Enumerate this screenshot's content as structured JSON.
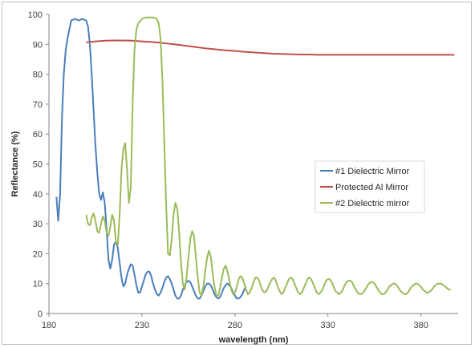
{
  "chart_data": {
    "type": "line",
    "xlabel": "wavelength (nm)",
    "ylabel": "Reflectance (%)",
    "xlim": [
      180,
      400
    ],
    "ylim": [
      0,
      100
    ],
    "x_ticks": [
      180,
      230,
      280,
      330,
      380
    ],
    "y_ticks": [
      0,
      10,
      20,
      30,
      40,
      50,
      60,
      70,
      80,
      90,
      100
    ],
    "grid": false,
    "legend_position": "right",
    "series": [
      {
        "name": "#1 Dielectric Mirror",
        "color": "#4a7ebb",
        "points": [
          [
            184,
            39
          ],
          [
            185,
            31
          ],
          [
            186,
            40
          ],
          [
            187,
            65
          ],
          [
            188,
            80
          ],
          [
            189,
            88
          ],
          [
            190,
            92
          ],
          [
            191,
            95
          ],
          [
            192,
            98
          ],
          [
            194,
            98.5
          ],
          [
            196,
            98
          ],
          [
            198,
            98.5
          ],
          [
            200,
            98
          ],
          [
            201,
            96
          ],
          [
            202,
            90
          ],
          [
            203,
            80
          ],
          [
            204,
            68
          ],
          [
            205,
            56
          ],
          [
            206,
            47
          ],
          [
            207,
            40
          ],
          [
            208,
            38
          ],
          [
            209,
            40.5
          ],
          [
            210,
            37
          ],
          [
            211,
            28
          ],
          [
            212,
            18
          ],
          [
            213,
            15
          ],
          [
            214,
            18
          ],
          [
            215,
            23
          ],
          [
            216,
            24
          ],
          [
            217,
            22
          ],
          [
            218,
            17
          ],
          [
            219,
            12
          ],
          [
            220,
            9
          ],
          [
            221,
            10
          ],
          [
            222,
            13
          ],
          [
            223,
            15
          ],
          [
            224,
            16.5
          ],
          [
            225,
            16
          ],
          [
            226,
            13
          ],
          [
            227,
            9.5
          ],
          [
            228,
            7
          ],
          [
            229,
            7
          ],
          [
            230,
            9
          ],
          [
            231,
            11
          ],
          [
            232,
            13
          ],
          [
            233,
            14
          ],
          [
            234,
            14
          ],
          [
            235,
            12.5
          ],
          [
            236,
            10
          ],
          [
            237,
            8
          ],
          [
            238,
            6.5
          ],
          [
            239,
            6
          ],
          [
            240,
            7
          ],
          [
            241,
            8.5
          ],
          [
            242,
            10.5
          ],
          [
            243,
            12
          ],
          [
            244,
            12.5
          ],
          [
            245,
            11.5
          ],
          [
            246,
            10
          ],
          [
            247,
            8
          ],
          [
            248,
            6
          ],
          [
            249,
            5
          ],
          [
            250,
            5
          ],
          [
            251,
            6
          ],
          [
            252,
            8
          ],
          [
            253,
            9.5
          ],
          [
            254,
            10.5
          ],
          [
            255,
            11
          ],
          [
            256,
            10.5
          ],
          [
            257,
            9
          ],
          [
            258,
            7.5
          ],
          [
            259,
            6
          ],
          [
            260,
            5
          ],
          [
            261,
            5
          ],
          [
            262,
            6
          ],
          [
            263,
            7.5
          ],
          [
            264,
            9
          ],
          [
            265,
            10
          ],
          [
            266,
            10
          ],
          [
            267,
            9.5
          ],
          [
            268,
            8
          ],
          [
            269,
            6.5
          ],
          [
            270,
            5.5
          ],
          [
            271,
            5
          ],
          [
            272,
            5.5
          ],
          [
            273,
            7
          ],
          [
            274,
            8.5
          ],
          [
            275,
            9.5
          ],
          [
            276,
            10
          ],
          [
            277,
            9.5
          ],
          [
            278,
            8.5
          ],
          [
            279,
            7
          ],
          [
            280,
            6
          ],
          [
            281,
            5
          ],
          [
            282,
            5
          ],
          [
            283,
            5.5
          ],
          [
            284,
            6.5
          ],
          [
            285,
            8
          ],
          [
            286,
            9
          ]
        ]
      },
      {
        "name": "Protected Al Mirror",
        "color": "#c0504d",
        "points": [
          [
            200,
            90.7
          ],
          [
            205,
            91
          ],
          [
            210,
            91.2
          ],
          [
            215,
            91.3
          ],
          [
            220,
            91.3
          ],
          [
            225,
            91.2
          ],
          [
            230,
            91
          ],
          [
            235,
            90.8
          ],
          [
            240,
            90.5
          ],
          [
            245,
            90.2
          ],
          [
            250,
            89.8
          ],
          [
            255,
            89.4
          ],
          [
            260,
            89
          ],
          [
            265,
            88.6
          ],
          [
            270,
            88.3
          ],
          [
            275,
            88
          ],
          [
            280,
            87.8
          ],
          [
            285,
            87.5
          ],
          [
            290,
            87.3
          ],
          [
            295,
            87.1
          ],
          [
            300,
            86.9
          ],
          [
            305,
            86.8
          ],
          [
            310,
            86.7
          ],
          [
            315,
            86.6
          ],
          [
            320,
            86.6
          ],
          [
            325,
            86.5
          ],
          [
            330,
            86.5
          ],
          [
            335,
            86.5
          ],
          [
            340,
            86.5
          ],
          [
            345,
            86.5
          ],
          [
            350,
            86.5
          ],
          [
            355,
            86.5
          ],
          [
            360,
            86.5
          ],
          [
            365,
            86.5
          ],
          [
            370,
            86.5
          ],
          [
            375,
            86.5
          ],
          [
            380,
            86.5
          ],
          [
            385,
            86.5
          ],
          [
            390,
            86.5
          ],
          [
            395,
            86.5
          ],
          [
            398,
            86.5
          ]
        ]
      },
      {
        "name": "#2 Dielectric mirror",
        "color": "#9bbb59",
        "points": [
          [
            200,
            33
          ],
          [
            201,
            30
          ],
          [
            202,
            29.5
          ],
          [
            203,
            32
          ],
          [
            204,
            33.5
          ],
          [
            205,
            31
          ],
          [
            206,
            27.5
          ],
          [
            207,
            27
          ],
          [
            208,
            30
          ],
          [
            209,
            32.5
          ],
          [
            210,
            31
          ],
          [
            211,
            27
          ],
          [
            212,
            26
          ],
          [
            213,
            29
          ],
          [
            214,
            33
          ],
          [
            215,
            31
          ],
          [
            216,
            24
          ],
          [
            217,
            23
          ],
          [
            218,
            33
          ],
          [
            219,
            48
          ],
          [
            220,
            55
          ],
          [
            221,
            57
          ],
          [
            222,
            48
          ],
          [
            223,
            37
          ],
          [
            224,
            42
          ],
          [
            225,
            70
          ],
          [
            226,
            88
          ],
          [
            227,
            95
          ],
          [
            228,
            97
          ],
          [
            230,
            98.5
          ],
          [
            232,
            99
          ],
          [
            234,
            99
          ],
          [
            236,
            99
          ],
          [
            238,
            98.5
          ],
          [
            239,
            97
          ],
          [
            240,
            92
          ],
          [
            241,
            78
          ],
          [
            242,
            58
          ],
          [
            243,
            37
          ],
          [
            244,
            20
          ],
          [
            245,
            19.5
          ],
          [
            246,
            25
          ],
          [
            247,
            33
          ],
          [
            248,
            37
          ],
          [
            249,
            35
          ],
          [
            250,
            27
          ],
          [
            251,
            17
          ],
          [
            252,
            10
          ],
          [
            253,
            8
          ],
          [
            254,
            12
          ],
          [
            255,
            19
          ],
          [
            256,
            25
          ],
          [
            257,
            27.5
          ],
          [
            258,
            26
          ],
          [
            259,
            19
          ],
          [
            260,
            12
          ],
          [
            261,
            7
          ],
          [
            262,
            6
          ],
          [
            263,
            9
          ],
          [
            264,
            14
          ],
          [
            265,
            18.5
          ],
          [
            266,
            21
          ],
          [
            267,
            19
          ],
          [
            268,
            13.5
          ],
          [
            269,
            9
          ],
          [
            270,
            6
          ],
          [
            271,
            6
          ],
          [
            272,
            8.5
          ],
          [
            273,
            12
          ],
          [
            274,
            15
          ],
          [
            275,
            16
          ],
          [
            276,
            14
          ],
          [
            277,
            11
          ],
          [
            278,
            8
          ],
          [
            279,
            6.5
          ],
          [
            280,
            7
          ],
          [
            281,
            9
          ],
          [
            282,
            11.5
          ],
          [
            283,
            12.5
          ],
          [
            284,
            12
          ],
          [
            285,
            10
          ],
          [
            286,
            8
          ],
          [
            287,
            6.5
          ],
          [
            288,
            7
          ],
          [
            289,
            8.5
          ],
          [
            290,
            10.5
          ],
          [
            291,
            12
          ],
          [
            292,
            12
          ],
          [
            293,
            11
          ],
          [
            294,
            9
          ],
          [
            295,
            7.5
          ],
          [
            296,
            7
          ],
          [
            297,
            7.5
          ],
          [
            298,
            9
          ],
          [
            299,
            10.5
          ],
          [
            300,
            11.5
          ],
          [
            301,
            12
          ],
          [
            302,
            11
          ],
          [
            303,
            9
          ],
          [
            304,
            7.5
          ],
          [
            305,
            6.5
          ],
          [
            306,
            7
          ],
          [
            307,
            8.5
          ],
          [
            308,
            10
          ],
          [
            309,
            11.5
          ],
          [
            310,
            12
          ],
          [
            311,
            11.5
          ],
          [
            312,
            10
          ],
          [
            313,
            8.5
          ],
          [
            314,
            7
          ],
          [
            315,
            6.5
          ],
          [
            316,
            7
          ],
          [
            317,
            8.5
          ],
          [
            318,
            10
          ],
          [
            319,
            11.5
          ],
          [
            320,
            12
          ],
          [
            321,
            11.5
          ],
          [
            322,
            10
          ],
          [
            323,
            8.5
          ],
          [
            324,
            7
          ],
          [
            325,
            6.5
          ],
          [
            326,
            7
          ],
          [
            327,
            8
          ],
          [
            328,
            9.5
          ],
          [
            329,
            11
          ],
          [
            330,
            11.5
          ],
          [
            331,
            11.5
          ],
          [
            332,
            10.5
          ],
          [
            333,
            9
          ],
          [
            334,
            7.5
          ],
          [
            335,
            7
          ],
          [
            336,
            6.5
          ],
          [
            337,
            7
          ],
          [
            338,
            8
          ],
          [
            339,
            9.5
          ],
          [
            340,
            10.5
          ],
          [
            341,
            11
          ],
          [
            342,
            11
          ],
          [
            343,
            10.5
          ],
          [
            344,
            9
          ],
          [
            345,
            8
          ],
          [
            346,
            7
          ],
          [
            347,
            6.5
          ],
          [
            348,
            6.5
          ],
          [
            349,
            7
          ],
          [
            350,
            8
          ],
          [
            351,
            9
          ],
          [
            352,
            10
          ],
          [
            353,
            10.5
          ],
          [
            354,
            10.5
          ],
          [
            355,
            10
          ],
          [
            356,
            9
          ],
          [
            357,
            8
          ],
          [
            358,
            7
          ],
          [
            359,
            6.5
          ],
          [
            360,
            6.5
          ],
          [
            361,
            7
          ],
          [
            362,
            8
          ],
          [
            363,
            9
          ],
          [
            364,
            9.5
          ],
          [
            365,
            10
          ],
          [
            366,
            10
          ],
          [
            367,
            9.5
          ],
          [
            368,
            8.5
          ],
          [
            369,
            7.5
          ],
          [
            370,
            7
          ],
          [
            371,
            6.5
          ],
          [
            372,
            6.5
          ],
          [
            373,
            7
          ],
          [
            374,
            8
          ],
          [
            375,
            9
          ],
          [
            376,
            9.5
          ],
          [
            377,
            10
          ],
          [
            378,
            10
          ],
          [
            379,
            9.5
          ],
          [
            380,
            9
          ],
          [
            381,
            8
          ],
          [
            382,
            7.5
          ],
          [
            383,
            7
          ],
          [
            384,
            7
          ],
          [
            385,
            7.5
          ],
          [
            386,
            8
          ],
          [
            387,
            9
          ],
          [
            388,
            9.5
          ],
          [
            389,
            10
          ],
          [
            390,
            10
          ],
          [
            391,
            10
          ],
          [
            392,
            9.5
          ],
          [
            393,
            9
          ],
          [
            394,
            8.5
          ],
          [
            395,
            8
          ],
          [
            396,
            8
          ]
        ]
      }
    ]
  }
}
